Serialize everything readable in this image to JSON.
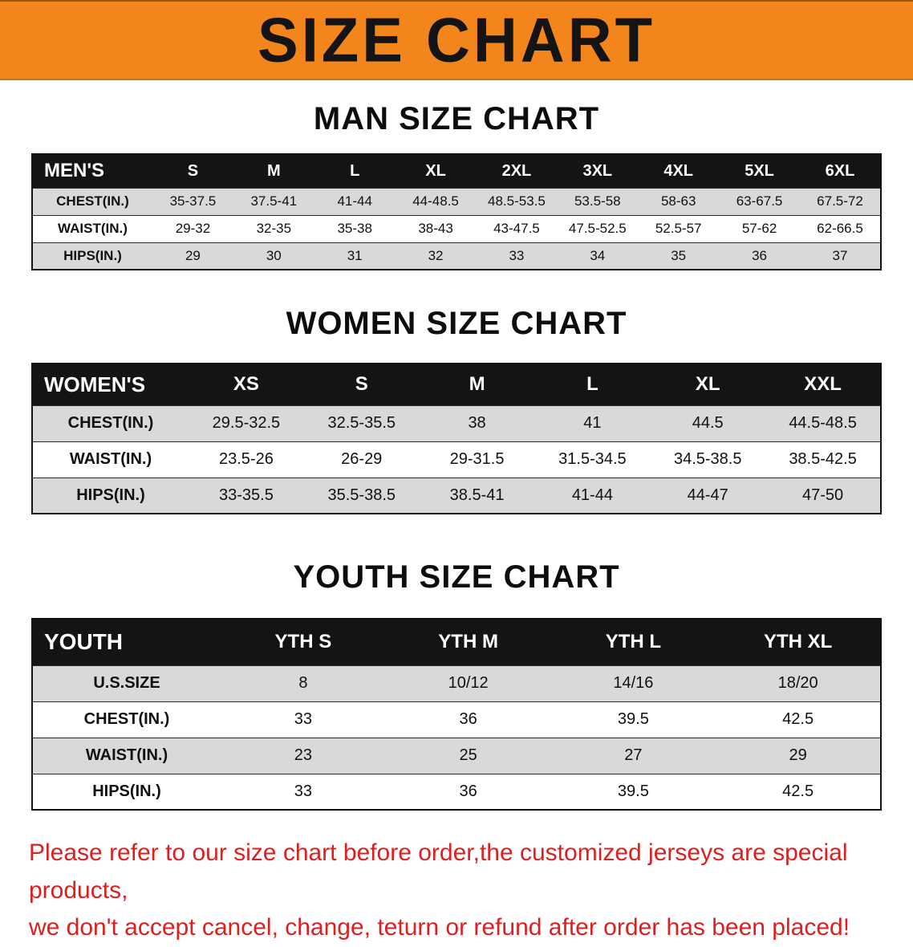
{
  "banner": {
    "title": "SIZE CHART"
  },
  "colors": {
    "banner_bg": "#f2861c",
    "table_header_bg": "#141414",
    "row_alt_bg": "#d9d9d9",
    "disclaimer_red": "#de1f1f"
  },
  "sections": [
    {
      "id": "men",
      "heading": "MAN SIZE CHART",
      "header": [
        "MEN'S",
        "S",
        "M",
        "L",
        "XL",
        "2XL",
        "3XL",
        "4XL",
        "5XL",
        "6XL"
      ],
      "rows": [
        {
          "label": "CHEST(IN.)",
          "values": [
            "35-37.5",
            "37.5-41",
            "41-44",
            "44-48.5",
            "48.5-53.5",
            "53.5-58",
            "58-63",
            "63-67.5",
            "67.5-72"
          ]
        },
        {
          "label": "WAIST(IN.)",
          "values": [
            "29-32",
            "32-35",
            "35-38",
            "38-43",
            "43-47.5",
            "47.5-52.5",
            "52.5-57",
            "57-62",
            "62-66.5"
          ]
        },
        {
          "label": "HIPS(IN.)",
          "values": [
            "29",
            "30",
            "31",
            "32",
            "33",
            "34",
            "35",
            "36",
            "37"
          ]
        }
      ]
    },
    {
      "id": "women",
      "heading": "WOMEN SIZE CHART",
      "header": [
        "WOMEN'S",
        "XS",
        "S",
        "M",
        "L",
        "XL",
        "XXL"
      ],
      "rows": [
        {
          "label": "CHEST(IN.)",
          "values": [
            "29.5-32.5",
            "32.5-35.5",
            "38",
            "41",
            "44.5",
            "44.5-48.5"
          ]
        },
        {
          "label": "WAIST(IN.)",
          "values": [
            "23.5-26",
            "26-29",
            "29-31.5",
            "31.5-34.5",
            "34.5-38.5",
            "38.5-42.5"
          ]
        },
        {
          "label": "HIPS(IN.)",
          "values": [
            "33-35.5",
            "35.5-38.5",
            "38.5-41",
            "41-44",
            "44-47",
            "47-50"
          ]
        }
      ]
    },
    {
      "id": "youth",
      "heading": "YOUTH SIZE CHART",
      "header": [
        "YOUTH",
        "YTH S",
        "YTH M",
        "YTH L",
        "YTH XL"
      ],
      "rows": [
        {
          "label": "U.S.SIZE",
          "values": [
            "8",
            "10/12",
            "14/16",
            "18/20"
          ]
        },
        {
          "label": "CHEST(IN.)",
          "values": [
            "33",
            "36",
            "39.5",
            "42.5"
          ]
        },
        {
          "label": "WAIST(IN.)",
          "values": [
            "23",
            "25",
            "27",
            "29"
          ]
        },
        {
          "label": "HIPS(IN.)",
          "values": [
            "33",
            "36",
            "39.5",
            "42.5"
          ]
        }
      ]
    }
  ],
  "disclaimer": {
    "line1": "Please refer to our size chart before order,the customized jerseys are special products,",
    "line2": "we don't accept cancel, change, teturn or refund after order has been placed!"
  }
}
